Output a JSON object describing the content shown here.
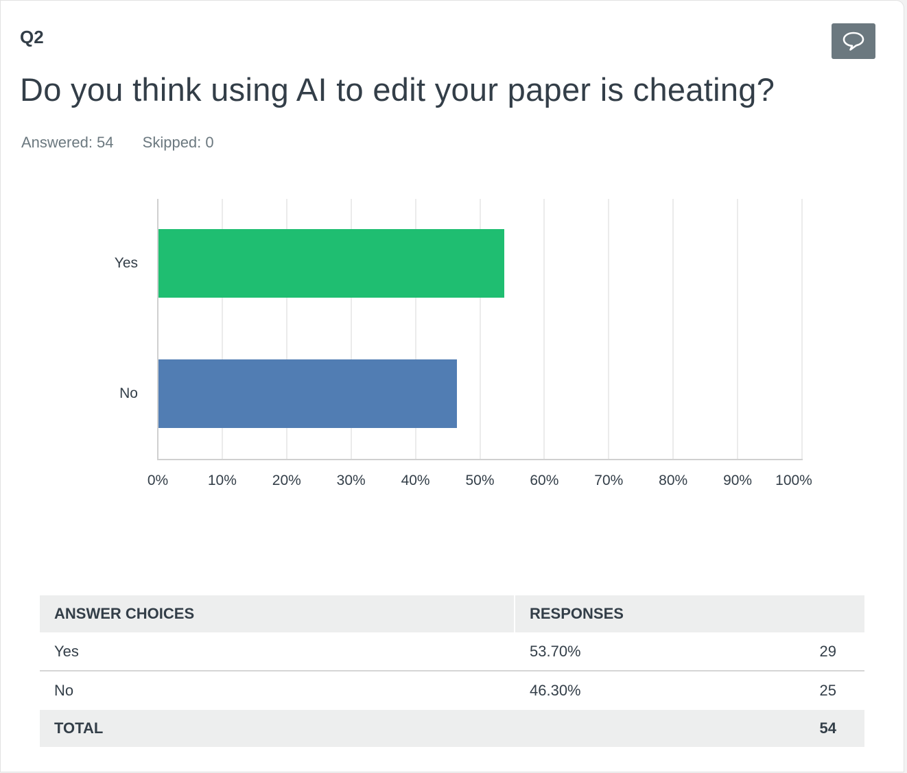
{
  "question": {
    "number": "Q2",
    "title": "Do you think using AI to edit your paper is cheating?",
    "answered_label": "Answered: 54",
    "skipped_label": "Skipped: 0",
    "comment_icon": "speech-bubble-icon"
  },
  "colors": {
    "yes_bar": "#1fbe71",
    "no_bar": "#517db3",
    "comment_button": "#6b787f",
    "table_header_bg": "#edeeee"
  },
  "chart_data": {
    "type": "bar",
    "orientation": "horizontal",
    "title": "Do you think using AI to edit your paper is cheating?",
    "categories": [
      "Yes",
      "No"
    ],
    "values": [
      53.7,
      46.3
    ],
    "colors": [
      "#1fbe71",
      "#517db3"
    ],
    "xlabel": "",
    "ylabel": "",
    "xlim": [
      0,
      100
    ],
    "x_ticks": [
      "0%",
      "10%",
      "20%",
      "30%",
      "40%",
      "50%",
      "60%",
      "70%",
      "80%",
      "90%",
      "100%"
    ],
    "grid": true,
    "legend": "none"
  },
  "table": {
    "headers": [
      "ANSWER CHOICES",
      "RESPONSES"
    ],
    "rows": [
      {
        "choice": "Yes",
        "percent": "53.70%",
        "count": "29"
      },
      {
        "choice": "No",
        "percent": "46.30%",
        "count": "25"
      }
    ],
    "total": {
      "label": "TOTAL",
      "count": "54"
    }
  }
}
